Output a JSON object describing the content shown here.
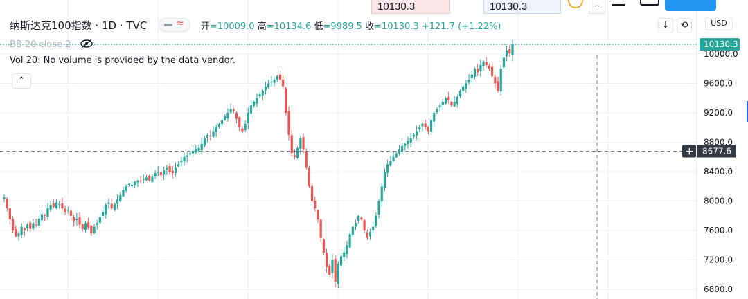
{
  "top": {
    "input_left": "10130.3",
    "input_right": "10130.3",
    "minus_icon": "minus-icon",
    "blue_button": ""
  },
  "legend": {
    "symbol": "纳斯达克100指数",
    "interval": "1D",
    "exchange": "TVC",
    "open_label": "开",
    "open": "=10009.0",
    "high_label": "高",
    "high": "=10134.6",
    "low_label": "低",
    "low": "=9989.5",
    "close_label": "收",
    "close": "=10130.3",
    "change": "+121.7 (+1.22%)"
  },
  "bb": {
    "label": "BB 20 close 2",
    "icon": "eye-off-icon"
  },
  "vol": {
    "label": "Vol 20: No volume is provided by the data vendor."
  },
  "controls": {
    "currency": "USD",
    "collapse_icon": "chevron-up-icon",
    "download_icon": "arrow-down-icon",
    "refresh_icon": "loop-icon"
  },
  "price_axis": {
    "last_price": "10130.3",
    "crosshair_price": "8677.6",
    "ticks": [
      "10000.0",
      "9600.0",
      "9200.0",
      "8800.0",
      "8400.0",
      "8000.0",
      "7600.0",
      "7200.0",
      "6800.0"
    ]
  },
  "colors": {
    "up": "#26a69a",
    "down": "#ef5350",
    "accent": "#2962ff",
    "grid": "#eceff4",
    "crosshair": "#7b7f8a"
  },
  "chart_data": {
    "type": "candlestick",
    "y_axis_ticks": [
      10000.0,
      9600.0,
      9200.0,
      8800.0,
      8400.0,
      8000.0,
      7600.0,
      7200.0,
      6800.0
    ],
    "ylim": [
      6650,
      10450
    ],
    "last": {
      "open": 10009.0,
      "high": 10134.6,
      "low": 9989.5,
      "close": 10130.3,
      "change": 121.7,
      "change_pct": 1.22
    },
    "crosshair_price": 8677.6,
    "close_path": [
      8050,
      7900,
      7750,
      7600,
      7520,
      7560,
      7650,
      7600,
      7680,
      7620,
      7700,
      7680,
      7760,
      7820,
      7800,
      7900,
      7950,
      7920,
      7980,
      7960,
      7900,
      7850,
      7880,
      7800,
      7720,
      7760,
      7680,
      7620,
      7700,
      7640,
      7560,
      7650,
      7700,
      7780,
      7850,
      7950,
      7980,
      7900,
      7960,
      8020,
      8080,
      8150,
      8200,
      8230,
      8220,
      8260,
      8280,
      8270,
      8300,
      8320,
      8280,
      8330,
      8380,
      8400,
      8350,
      8420,
      8450,
      8400,
      8380,
      8450,
      8500,
      8550,
      8600,
      8620,
      8650,
      8680,
      8700,
      8720,
      8780,
      8850,
      8900,
      8880,
      8950,
      9000,
      9050,
      9100,
      9150,
      9200,
      9250,
      9230,
      9120,
      9000,
      8950,
      9050,
      9200,
      9300,
      9350,
      9400,
      9450,
      9500,
      9560,
      9600,
      9620,
      9650,
      9700,
      9650,
      9560,
      9200,
      8900,
      8650,
      8600,
      8720,
      8850,
      8700,
      8450,
      8200,
      8000,
      7900,
      7750,
      7500,
      7300,
      7100,
      7000,
      7200,
      6900,
      7150,
      7250,
      7300,
      7400,
      7550,
      7650,
      7700,
      7800,
      7750,
      7600,
      7500,
      7580,
      7650,
      7800,
      8000,
      8200,
      8400,
      8500,
      8550,
      8600,
      8650,
      8700,
      8750,
      8780,
      8820,
      8850,
      8900,
      8950,
      9000,
      9050,
      9000,
      8950,
      9100,
      9200,
      9250,
      9300,
      9350,
      9400,
      9380,
      9300,
      9350,
      9420,
      9500,
      9560,
      9600,
      9650,
      9720,
      9800,
      9750,
      9850,
      9900,
      9850,
      9800,
      9700,
      9600,
      9500,
      9800,
      9950,
      10050,
      10009,
      10130.3
    ]
  }
}
